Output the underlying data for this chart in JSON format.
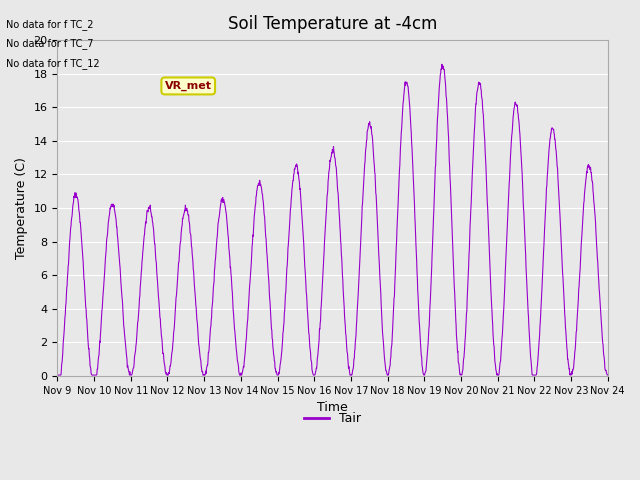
{
  "title": "Soil Temperature at -4cm",
  "xlabel": "Time",
  "ylabel": "Temperature (C)",
  "ylim": [
    0,
    20
  ],
  "line_color": "#9900cc",
  "plot_bg_color": "#e8e8e8",
  "legend_label": "Tair",
  "no_data_texts": [
    "No data for f TC_2",
    "No data for f TC_7",
    "No data for f TC_12"
  ],
  "vr_met_label": "VR_met",
  "x_tick_labels": [
    "Nov 9",
    "Nov 10",
    "Nov 11",
    "Nov 12",
    "Nov 13",
    "Nov 14",
    "Nov 15",
    "Nov 16",
    "Nov 17",
    "Nov 18",
    "Nov 19",
    "Nov 20",
    "Nov 21",
    "Nov 22",
    "Nov 23",
    "Nov 24"
  ],
  "num_days": 15,
  "start_day": 9
}
